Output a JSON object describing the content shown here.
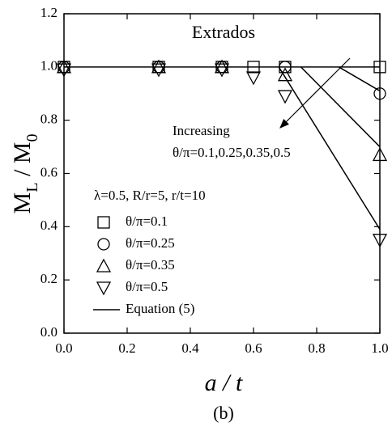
{
  "chart_data": {
    "type": "scatter",
    "annotations": [
      "Extrados",
      "Increasing",
      "θ/π=0.1,0.25,0.35,0.5"
    ],
    "legend_title": "λ=0.5, R/r=5, r/t=10",
    "x_label": "a / t",
    "y_label": [
      "M",
      "L",
      " / M",
      "0"
    ],
    "caption": "(b)",
    "xlim": [
      0,
      1
    ],
    "ylim": [
      0,
      1.2
    ],
    "xticks": [
      {
        "value": 0,
        "label": "0.0"
      },
      0.2,
      0.4,
      0.6,
      0.8,
      {
        "value": 1,
        "label": "1.0"
      }
    ],
    "yticks": [
      {
        "value": 0,
        "label": "0.0"
      },
      0.2,
      0.4,
      0.6,
      0.8,
      {
        "value": 1,
        "label": "1.0"
      },
      1.2
    ],
    "legend_position": "lower left",
    "series": [
      {
        "name": "θ/π=0.1",
        "marker": "square",
        "color": "#000000",
        "x": [
          0,
          0.3,
          0.5,
          0.6,
          0.7,
          1
        ],
        "values": [
          1,
          1,
          1,
          1,
          1,
          1
        ]
      },
      {
        "name": "θ/π=0.25",
        "marker": "circle",
        "color": "#000000",
        "x": [
          0,
          0.3,
          0.5,
          0.7,
          1
        ],
        "values": [
          1,
          1,
          1,
          1,
          0.9
        ]
      },
      {
        "name": "θ/π=0.35",
        "marker": "triangle-up",
        "color": "#000000",
        "x": [
          0,
          0.3,
          0.5,
          0.7,
          1
        ],
        "values": [
          1,
          1,
          1,
          0.97,
          0.67
        ]
      },
      {
        "name": "θ/π=0.5",
        "marker": "triangle-down",
        "color": "#000000",
        "x": [
          0,
          0.3,
          0.5,
          0.6,
          0.7,
          1
        ],
        "values": [
          0.99,
          0.99,
          0.99,
          0.96,
          0.89,
          0.35
        ]
      }
    ],
    "lines": {
      "name": "Equation (5)",
      "color": "#000000",
      "x": [
        0,
        1,
        null,
        0.87,
        1,
        null,
        0.75,
        1,
        null,
        0.68,
        1
      ],
      "values": [
        1,
        1,
        null,
        1,
        0.91,
        null,
        1,
        0.7,
        null,
        1,
        0.39
      ]
    }
  }
}
